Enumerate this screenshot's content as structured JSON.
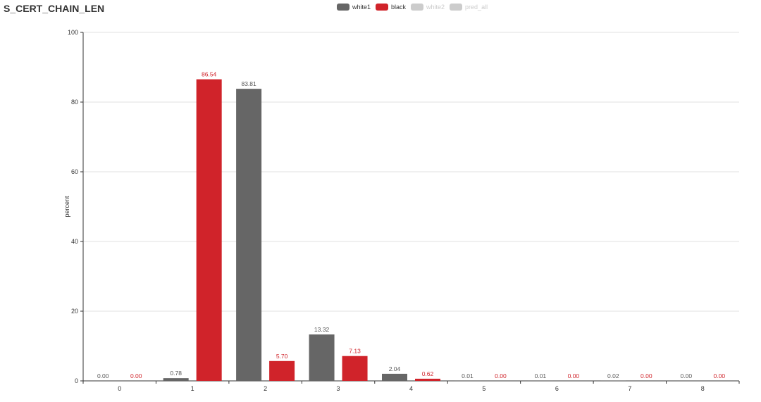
{
  "chart_data": {
    "type": "bar",
    "title": "S_CERT_CHAIN_LEN",
    "xlabel": "",
    "ylabel": "percent",
    "ylim": [
      0,
      100
    ],
    "yticks": [
      0,
      20,
      40,
      60,
      80,
      100
    ],
    "categories": [
      "0",
      "1",
      "2",
      "3",
      "4",
      "5",
      "6",
      "7",
      "8"
    ],
    "grid": "horizontal",
    "legend_position": "top-center",
    "legend": [
      {
        "name": "white1",
        "color": "#666666",
        "active": true
      },
      {
        "name": "black",
        "color": "#d0232a",
        "active": true
      },
      {
        "name": "white2",
        "color": "#cccccc",
        "active": false
      },
      {
        "name": "pred_all",
        "color": "#cccccc",
        "active": false
      }
    ],
    "series": [
      {
        "name": "white1",
        "color": "#666666",
        "label_color": "#555555",
        "values": [
          0.0,
          0.78,
          83.81,
          13.32,
          2.04,
          0.01,
          0.01,
          0.02,
          0.0
        ],
        "labels": [
          "0.00",
          "0.78",
          "83.81",
          "13.32",
          "2.04",
          "0.01",
          "0.01",
          "0.02",
          "0.00"
        ]
      },
      {
        "name": "black",
        "color": "#d0232a",
        "label_color": "#d0232a",
        "values": [
          0.0,
          86.54,
          5.7,
          7.13,
          0.62,
          0.0,
          0.0,
          0.0,
          0.0
        ],
        "labels": [
          "0.00",
          "86.54",
          "5.70",
          "7.13",
          "0.62",
          "0.00",
          "0.00",
          "0.00",
          "0.00"
        ]
      }
    ]
  }
}
